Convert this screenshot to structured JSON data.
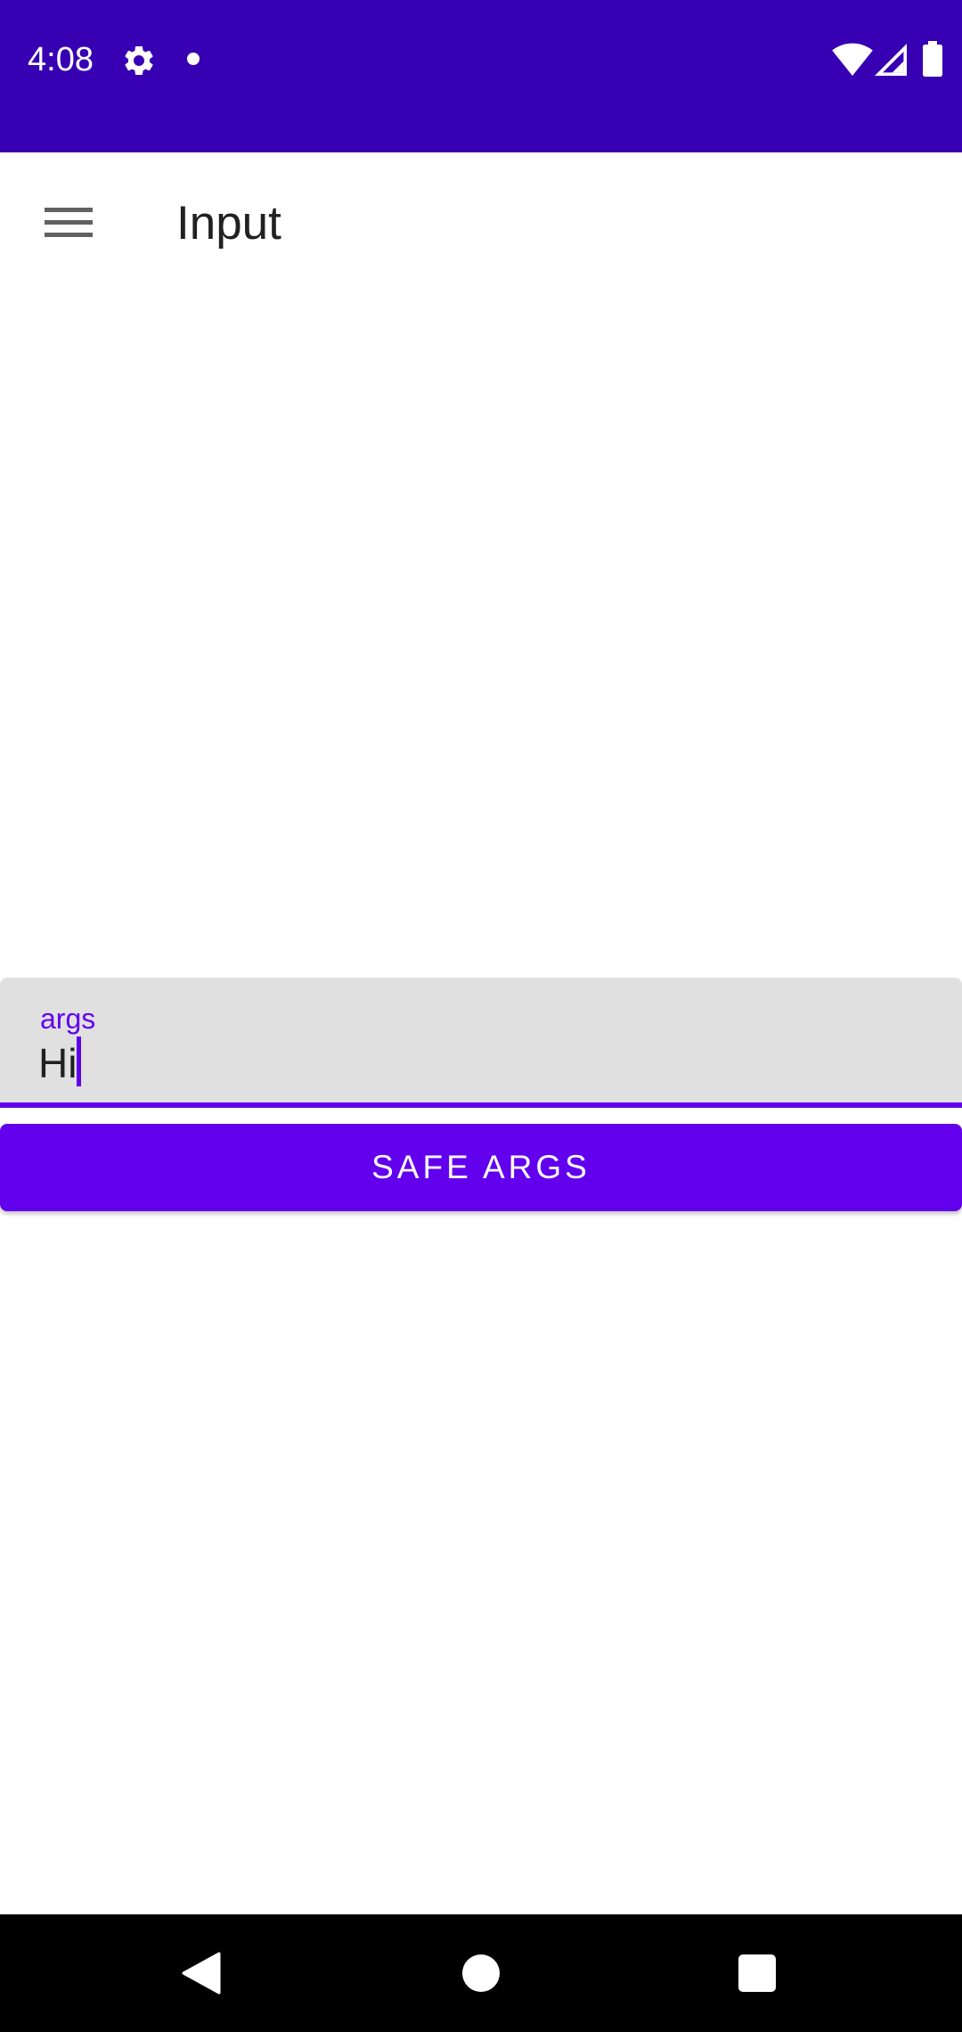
{
  "status_bar": {
    "time": "4:08",
    "icons": [
      "gear-icon",
      "notification-dot-icon",
      "wifi-icon",
      "cellular-signal-icon",
      "battery-icon"
    ],
    "background_color": "#3700b3"
  },
  "app_bar": {
    "title": "Input",
    "menu_icon": "hamburger-menu-icon"
  },
  "form": {
    "field_label": "args",
    "field_value": "Hi",
    "button_label": "SAFE ARGS",
    "accent_color": "#6200ee",
    "field_background": "#e0e0e0"
  },
  "nav_bar": {
    "icons": [
      "back-icon",
      "home-icon",
      "recents-icon"
    ]
  }
}
